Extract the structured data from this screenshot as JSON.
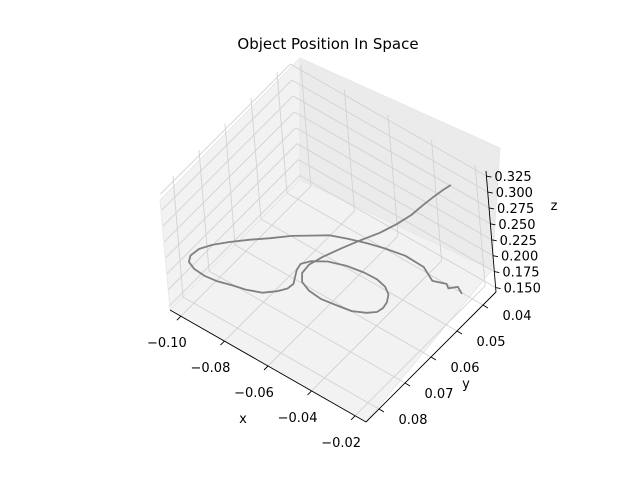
{
  "chart_data": {
    "type": "line",
    "title": "Object Position In Space",
    "xlabel": "x",
    "ylabel": "y",
    "zlabel": "z",
    "x_ticks": [
      "−0.10",
      "−0.08",
      "−0.06",
      "−0.04",
      "−0.02"
    ],
    "y_ticks": [
      "0.04",
      "0.05",
      "0.06",
      "0.07",
      "0.08"
    ],
    "z_ticks": [
      "0.150",
      "0.175",
      "0.200",
      "0.225",
      "0.250",
      "0.275",
      "0.300",
      "0.325"
    ],
    "grid": true,
    "series_color": "#808080",
    "pane_color": "#f2f2f2",
    "series": [
      {
        "x": [
          -0.022,
          -0.025,
          -0.027,
          -0.029,
          -0.033,
          -0.038,
          -0.045,
          -0.052,
          -0.058,
          -0.064,
          -0.07,
          -0.075,
          -0.08,
          -0.085,
          -0.09,
          -0.094,
          -0.097,
          -0.098,
          -0.097,
          -0.094,
          -0.089,
          -0.083,
          -0.077,
          -0.071,
          -0.066,
          -0.061,
          -0.058,
          -0.057,
          -0.058,
          -0.061,
          -0.064,
          -0.066,
          -0.065,
          -0.061,
          -0.055,
          -0.048,
          -0.042,
          -0.037,
          -0.033,
          -0.03,
          -0.028,
          -0.027,
          -0.028,
          -0.031,
          -0.035,
          -0.04,
          -0.044,
          -0.047,
          -0.048,
          -0.047,
          -0.044,
          -0.04,
          -0.036,
          -0.032,
          -0.029,
          -0.027,
          -0.026,
          -0.025,
          -0.024,
          -0.023
        ],
        "y": [
          0.042,
          0.041,
          0.043,
          0.042,
          0.044,
          0.043,
          0.044,
          0.046,
          0.048,
          0.05,
          0.052,
          0.055,
          0.058,
          0.062,
          0.066,
          0.07,
          0.074,
          0.078,
          0.082,
          0.085,
          0.087,
          0.088,
          0.088,
          0.087,
          0.086,
          0.084,
          0.081,
          0.078,
          0.075,
          0.072,
          0.069,
          0.066,
          0.063,
          0.06,
          0.058,
          0.057,
          0.057,
          0.058,
          0.06,
          0.063,
          0.066,
          0.069,
          0.072,
          0.075,
          0.077,
          0.079,
          0.08,
          0.08,
          0.079,
          0.077,
          0.074,
          0.07,
          0.066,
          0.062,
          0.058,
          0.054,
          0.05,
          0.047,
          0.044,
          0.042
        ],
        "z": [
          0.155,
          0.156,
          0.158,
          0.157,
          0.162,
          0.17,
          0.178,
          0.184,
          0.189,
          0.192,
          0.194,
          0.196,
          0.198,
          0.201,
          0.205,
          0.21,
          0.216,
          0.224,
          0.232,
          0.24,
          0.247,
          0.252,
          0.255,
          0.256,
          0.255,
          0.252,
          0.248,
          0.242,
          0.235,
          0.228,
          0.221,
          0.214,
          0.208,
          0.203,
          0.2,
          0.199,
          0.2,
          0.202,
          0.206,
          0.212,
          0.219,
          0.227,
          0.236,
          0.245,
          0.254,
          0.263,
          0.272,
          0.28,
          0.288,
          0.295,
          0.301,
          0.306,
          0.31,
          0.313,
          0.316,
          0.318,
          0.32,
          0.322,
          0.323,
          0.324
        ]
      }
    ]
  }
}
